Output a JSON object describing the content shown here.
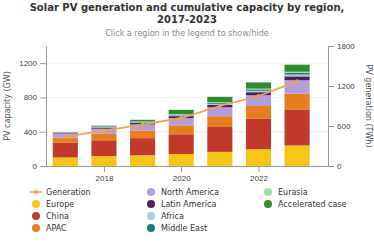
{
  "chart_data": {
    "type": "bar",
    "stacked": true,
    "title": "Solar PV generation and cumulative capacity by region,\n2017-2023",
    "subtitle": "Click a region in the legend to show/hide",
    "ylabel": "PV capacity (GW)",
    "y2label": "PV generation (TWh)",
    "x": [
      2017,
      2018,
      2019,
      2020,
      2021,
      2022,
      2023
    ],
    "xlim": [
      2016.5,
      2023.8
    ],
    "xticks": [
      2018,
      2020,
      2022
    ],
    "ylim": [
      0,
      1400
    ],
    "yticks": [
      0,
      400,
      800,
      1200
    ],
    "y2lim": [
      0,
      1800
    ],
    "y2ticks": [
      0,
      600,
      1200,
      1800
    ],
    "grid": true,
    "legend": "bottom",
    "series": [
      {
        "name": "Generation",
        "type": "line",
        "axis": "y2",
        "marker": "circle",
        "color": "#f0a050",
        "values": [
          440,
          530,
          620,
          720,
          900,
          1050,
          1270
        ]
      },
      {
        "name": "Europe",
        "color": "#f5c518",
        "values": [
          100,
          115,
          125,
          140,
          165,
          195,
          240
        ]
      },
      {
        "name": "China",
        "color": "#c0392b",
        "values": [
          170,
          185,
          200,
          230,
          290,
          355,
          420
        ]
      },
      {
        "name": "APAC",
        "color": "#e67e22",
        "values": [
          60,
          75,
          90,
          105,
          125,
          150,
          185
        ]
      },
      {
        "name": "North America",
        "color": "#b39ddb",
        "values": [
          50,
          60,
          70,
          85,
          105,
          125,
          155
        ]
      },
      {
        "name": "Latin America",
        "color": "#4a235a",
        "values": [
          8,
          13,
          17,
          22,
          28,
          36,
          46
        ]
      },
      {
        "name": "Africa",
        "color": "#a9cce3",
        "values": [
          4,
          6,
          8,
          10,
          13,
          17,
          21
        ]
      },
      {
        "name": "Middle East",
        "color": "#1a7a7a",
        "values": [
          3,
          5,
          7,
          9,
          11,
          15,
          19
        ]
      },
      {
        "name": "Eurasia",
        "color": "#a8d8a8",
        "values": [
          2,
          3,
          4,
          6,
          8,
          10,
          14
        ]
      },
      {
        "name": "Accelerated case",
        "color": "#2e8b2e",
        "values": [
          0,
          8,
          18,
          48,
          62,
          72,
          82
        ]
      }
    ]
  }
}
